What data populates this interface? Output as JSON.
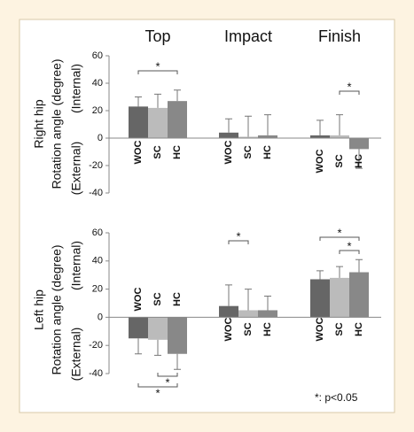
{
  "chart_data": [
    {
      "type": "bar",
      "categories": [
        "Top",
        "Impact",
        "Finish"
      ],
      "y_label": [
        "Right hip",
        "Rotation angle (degree)"
      ],
      "y_direction_labels": [
        "(Internal)",
        "(External)"
      ],
      "ylim": [
        -40,
        60
      ],
      "yticks": [
        -40,
        -20,
        0,
        20,
        40,
        60
      ],
      "series": [
        {
          "name": "WOC",
          "color": "#666666",
          "values": [
            23,
            4,
            2
          ],
          "errors": [
            7,
            10,
            11
          ]
        },
        {
          "name": "SC",
          "color": "#bbbbbb",
          "values": [
            22,
            1,
            2
          ],
          "errors": [
            10,
            15,
            15
          ]
        },
        {
          "name": "HC",
          "color": "#888888",
          "values": [
            27,
            2,
            -8
          ],
          "errors": [
            8,
            15,
            14
          ]
        }
      ],
      "annotations": [
        {
          "text": "*",
          "category": 0,
          "from": 0,
          "to": 2
        },
        {
          "text": "*",
          "category": 2,
          "from": 1,
          "to": 2
        }
      ]
    },
    {
      "type": "bar",
      "y_label": [
        "Left hip",
        "Rotation angle (degree)"
      ],
      "y_direction_labels": [
        "(Internal)",
        "(External)"
      ],
      "ylim": [
        -40,
        60
      ],
      "yticks": [
        -40,
        -20,
        0,
        20,
        40,
        60
      ],
      "series": [
        {
          "name": "WOC",
          "color": "#666666",
          "values": [
            -15,
            8,
            27
          ],
          "errors": [
            11,
            15,
            6
          ]
        },
        {
          "name": "SC",
          "color": "#bbbbbb",
          "values": [
            -16,
            5,
            28
          ],
          "errors": [
            11,
            15,
            8
          ]
        },
        {
          "name": "HC",
          "color": "#888888",
          "values": [
            -26,
            5,
            32
          ],
          "errors": [
            11,
            10,
            9
          ]
        }
      ],
      "annotations": [
        {
          "text": "*",
          "category": 1,
          "from": 0,
          "to": 1
        },
        {
          "text": "*",
          "category": 2,
          "from": 0,
          "to": 2
        },
        {
          "text": "*",
          "category": 2,
          "from": 1,
          "to": 2
        },
        {
          "text": "*",
          "category": 0,
          "from": 1,
          "to": 2
        },
        {
          "text": "*",
          "category": 0,
          "from": 0,
          "to": 2
        }
      ]
    }
  ],
  "footnote": "*: p<0.05"
}
